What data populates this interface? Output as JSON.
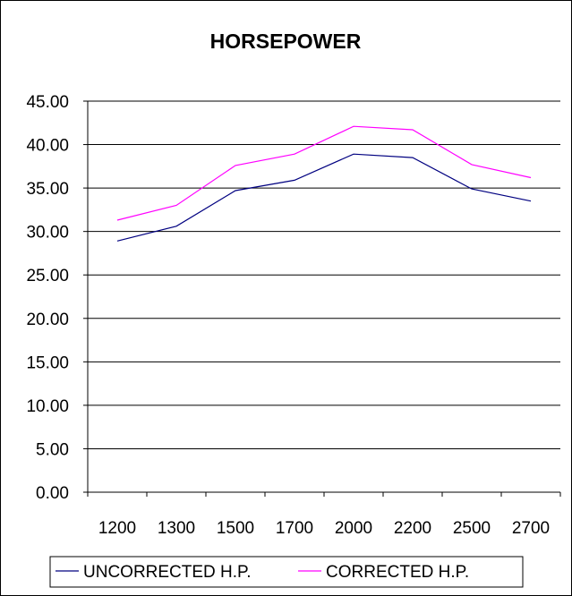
{
  "chart_data": {
    "type": "line",
    "title": "HORSEPOWER",
    "xlabel": "",
    "ylabel": "",
    "categories": [
      "1200",
      "1300",
      "1500",
      "1700",
      "2000",
      "2200",
      "2500",
      "2700"
    ],
    "ylim": [
      0,
      45
    ],
    "y_ticks": [
      "0.00",
      "5.00",
      "10.00",
      "15.00",
      "20.00",
      "25.00",
      "30.00",
      "35.00",
      "40.00",
      "45.00"
    ],
    "grid": true,
    "legend_position": "bottom",
    "series": [
      {
        "name": "UNCORRECTED H.P.",
        "color": "#000080",
        "values": [
          28.9,
          30.6,
          34.7,
          35.9,
          38.9,
          38.5,
          34.9,
          33.5
        ]
      },
      {
        "name": "CORRECTED H.P.",
        "color": "#ff00ff",
        "values": [
          31.3,
          33.0,
          37.6,
          38.9,
          42.1,
          41.7,
          37.7,
          36.2
        ]
      }
    ]
  }
}
